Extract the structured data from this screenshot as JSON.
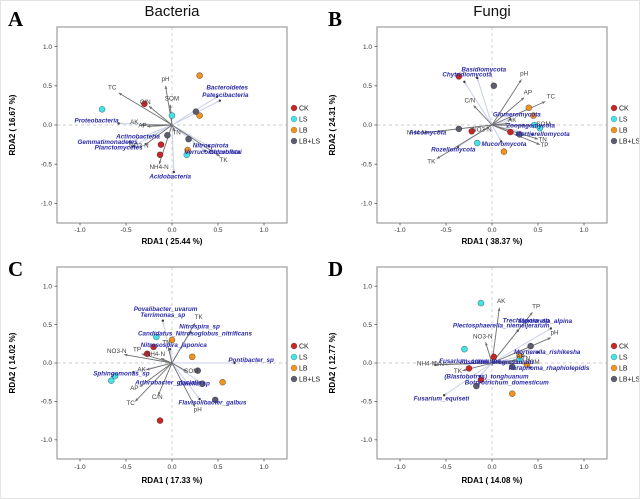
{
  "figure": {
    "column_titles": [
      "Bacteria",
      "Fungi"
    ],
    "legend": {
      "groups": [
        {
          "label": "CK",
          "color": "#c92626"
        },
        {
          "label": "LS",
          "color": "#45e2e6"
        },
        {
          "label": "LB",
          "color": "#f0921e"
        },
        {
          "label": "LB+LS",
          "color": "#5d5d70"
        }
      ]
    },
    "colors": {
      "taxa_label": "#2a2aa8",
      "env_label": "#3f3f3f",
      "env_arrow": "#6f6f6f",
      "taxa_arrow": "#c9d0e8",
      "frame": "#8a8a8a",
      "zero_line": "#cccccc"
    }
  },
  "chart_data": [
    {
      "type": "scatter",
      "id": "A",
      "letter": "A",
      "xlabel": "RDA1 ( 25.44 %)",
      "ylabel": "RDA2 ( 16.67 %)",
      "xticks": [
        -1.0,
        -0.5,
        0.0,
        0.5,
        1.0
      ],
      "yticks": [
        -1.0,
        -0.5,
        0.0,
        0.5,
        1.0
      ],
      "xlim": [
        -1.25,
        1.25
      ],
      "ylim": [
        -1.25,
        1.25
      ],
      "env_arrows": [
        {
          "label": "pH",
          "x": -0.07,
          "y": 0.5,
          "tx": -0.07,
          "ty": 0.56
        },
        {
          "label": "SOM",
          "x": -0.02,
          "y": 0.26,
          "tx": 0.0,
          "ty": 0.31
        },
        {
          "label": "TC",
          "x": -0.58,
          "y": 0.41,
          "tx": -0.65,
          "ty": 0.45
        },
        {
          "label": "C/N",
          "x": -0.25,
          "y": 0.24,
          "tx": -0.29,
          "ty": 0.27
        },
        {
          "label": "AK",
          "x": -0.34,
          "y": 0.0,
          "tx": -0.41,
          "ty": 0.01
        },
        {
          "label": "AP",
          "x": -0.27,
          "y": -0.02,
          "tx": -0.32,
          "ty": -0.03
        },
        {
          "label": "TN",
          "x": 0.03,
          "y": -0.08,
          "tx": 0.05,
          "ty": -0.12
        },
        {
          "label": "NO3-N",
          "x": -0.3,
          "y": -0.26,
          "tx": -0.36,
          "ty": -0.29
        },
        {
          "label": "NH4-N",
          "x": -0.14,
          "y": -0.5,
          "tx": -0.14,
          "ty": -0.56
        },
        {
          "label": "TK",
          "x": 0.52,
          "y": -0.4,
          "tx": 0.56,
          "ty": -0.47
        }
      ],
      "taxa": [
        {
          "label": "Bacteroidetes",
          "px": 0.49,
          "py": 0.36,
          "tx": 0.6,
          "ty": 0.45
        },
        {
          "label": "Patescibacteria",
          "px": 0.52,
          "py": 0.31,
          "tx": 0.58,
          "ty": 0.36
        },
        {
          "label": "Proteobacteria",
          "px": -0.58,
          "py": 0.02,
          "tx": -0.82,
          "ty": 0.03
        },
        {
          "label": "Actinobacteria",
          "px": -0.2,
          "py": -0.13,
          "tx": -0.37,
          "ty": -0.17
        },
        {
          "label": "Gemmatimonadetes",
          "px": -0.46,
          "py": -0.22,
          "tx": -0.7,
          "ty": -0.24
        },
        {
          "label": "Planctomycetes",
          "px": -0.42,
          "py": -0.27,
          "tx": -0.58,
          "ty": -0.31
        },
        {
          "label": "Nitrospirota",
          "px": 0.4,
          "py": -0.27,
          "tx": 0.42,
          "ty": -0.29
        },
        {
          "label": "Verrucomicrobiota",
          "px": 0.36,
          "py": -0.33,
          "tx": 0.44,
          "ty": -0.37
        },
        {
          "label": "Chloroflexi",
          "px": null,
          "py": null,
          "tx": 0.58,
          "ty": -0.37
        },
        {
          "label": "Acidobacteria",
          "px": 0.02,
          "py": -0.6,
          "tx": -0.02,
          "ty": -0.68
        }
      ],
      "samples": [
        {
          "group": "CK",
          "x": -0.3,
          "y": 0.27
        },
        {
          "group": "CK",
          "x": -0.12,
          "y": -0.25
        },
        {
          "group": "CK",
          "x": -0.13,
          "y": -0.38
        },
        {
          "group": "LS",
          "x": -0.76,
          "y": 0.2
        },
        {
          "group": "LS",
          "x": 0.0,
          "y": 0.12
        },
        {
          "group": "LS",
          "x": 0.16,
          "y": -0.38
        },
        {
          "group": "LB",
          "x": 0.3,
          "y": 0.63
        },
        {
          "group": "LB",
          "x": 0.3,
          "y": 0.12
        },
        {
          "group": "LB",
          "x": 0.17,
          "y": -0.32
        },
        {
          "group": "LB+LS",
          "x": 0.26,
          "y": 0.17
        },
        {
          "group": "LB+LS",
          "x": -0.05,
          "y": -0.13
        },
        {
          "group": "LB+LS",
          "x": 0.18,
          "y": -0.18
        }
      ]
    },
    {
      "type": "scatter",
      "id": "B",
      "letter": "B",
      "xlabel": "RDA1 ( 38.37 %)",
      "ylabel": "RDA2 ( 24.31 %)",
      "xticks": [
        -1.0,
        -0.5,
        0.0,
        0.5,
        1.0
      ],
      "yticks": [
        -1.0,
        -0.5,
        0.0,
        0.5,
        1.0
      ],
      "xlim": [
        -1.25,
        1.25
      ],
      "ylim": [
        -1.25,
        1.25
      ],
      "env_arrows": [
        {
          "label": "pH",
          "x": 0.32,
          "y": 0.58,
          "tx": 0.35,
          "ty": 0.63
        },
        {
          "label": "AP",
          "x": 0.35,
          "y": 0.35,
          "tx": 0.39,
          "ty": 0.39
        },
        {
          "label": "TC",
          "x": 0.58,
          "y": 0.3,
          "tx": 0.64,
          "ty": 0.34
        },
        {
          "label": "C/N",
          "x": -0.2,
          "y": 0.25,
          "tx": -0.24,
          "ty": 0.29
        },
        {
          "label": "AK",
          "x": 0.18,
          "y": 0.02,
          "tx": 0.22,
          "ty": 0.04
        },
        {
          "label": "SOM",
          "x": 0.5,
          "y": -0.01,
          "tx": 0.56,
          "ty": -0.01
        },
        {
          "label": "TN",
          "x": 0.5,
          "y": -0.18,
          "tx": 0.55,
          "ty": -0.21
        },
        {
          "label": "TP",
          "x": 0.52,
          "y": -0.25,
          "tx": 0.57,
          "ty": -0.28
        },
        {
          "label": "NO3-N",
          "x": -0.07,
          "y": -0.05,
          "tx": -0.11,
          "ty": -0.08
        },
        {
          "label": "NH4-N",
          "x": -0.74,
          "y": -0.1,
          "tx": -0.82,
          "ty": -0.12
        },
        {
          "label": "TK",
          "x": -0.6,
          "y": -0.43,
          "tx": -0.66,
          "ty": -0.49
        }
      ],
      "taxa": [
        {
          "label": "Basidiomycota",
          "px": -0.16,
          "py": 0.6,
          "tx": -0.09,
          "ty": 0.68
        },
        {
          "label": "Chytridiomycota",
          "px": -0.3,
          "py": 0.55,
          "tx": -0.27,
          "ty": 0.62
        },
        {
          "label": "Glomeromycota",
          "px": 0.2,
          "py": 0.07,
          "tx": 0.27,
          "ty": 0.11
        },
        {
          "label": "Zoopagomycota",
          "px": 0.34,
          "py": 0.0,
          "tx": 0.42,
          "ty": -0.03
        },
        {
          "label": "Mortierellomycota",
          "px": 0.44,
          "py": -0.12,
          "tx": 0.55,
          "ty": -0.14
        },
        {
          "label": "Mucoromycota",
          "px": 0.1,
          "py": -0.21,
          "tx": 0.13,
          "ty": -0.27
        },
        {
          "label": "Rozellomycota",
          "px": -0.37,
          "py": -0.28,
          "tx": -0.42,
          "ty": -0.34
        },
        {
          "label": "Ascomycota",
          "px": -0.58,
          "py": -0.08,
          "tx": -0.7,
          "ty": -0.12
        }
      ],
      "samples": [
        {
          "group": "CK",
          "x": -0.36,
          "y": 0.62
        },
        {
          "group": "CK",
          "x": -0.22,
          "y": -0.08
        },
        {
          "group": "CK",
          "x": 0.2,
          "y": -0.09
        },
        {
          "group": "LS",
          "x": 0.46,
          "y": 0.0
        },
        {
          "group": "LS",
          "x": 0.52,
          "y": -0.04
        },
        {
          "group": "LS",
          "x": -0.16,
          "y": -0.23
        },
        {
          "group": "LB",
          "x": 0.4,
          "y": 0.22
        },
        {
          "group": "LB",
          "x": 0.13,
          "y": -0.34
        },
        {
          "group": "LB",
          "x": 0.45,
          "y": 0.12
        },
        {
          "group": "LB+LS",
          "x": 0.02,
          "y": 0.5
        },
        {
          "group": "LB+LS",
          "x": -0.36,
          "y": -0.05
        },
        {
          "group": "LB+LS",
          "x": 0.3,
          "y": -0.12
        }
      ]
    },
    {
      "type": "scatter",
      "id": "C",
      "letter": "C",
      "xlabel": "RDA1 ( 17.33 %)",
      "ylabel": "RDA2 ( 14.02 %)",
      "xticks": [
        -1.0,
        -0.5,
        0.0,
        0.5,
        1.0
      ],
      "yticks": [
        -1.0,
        -0.5,
        0.0,
        0.5,
        1.0
      ],
      "xlim": [
        -1.25,
        1.25
      ],
      "ylim": [
        -1.25,
        1.25
      ],
      "env_arrows": [
        {
          "label": "TK",
          "x": 0.25,
          "y": 0.52,
          "tx": 0.29,
          "ty": 0.57
        },
        {
          "label": "TN",
          "x": -0.04,
          "y": 0.2,
          "tx": -0.06,
          "ty": 0.24
        },
        {
          "label": "TP",
          "x": -0.33,
          "y": 0.12,
          "tx": -0.38,
          "ty": 0.15
        },
        {
          "label": "NO3-N",
          "x": -0.52,
          "y": 0.11,
          "tx": -0.6,
          "ty": 0.13
        },
        {
          "label": "NH4-N",
          "x": -0.12,
          "y": 0.06,
          "tx": -0.18,
          "ty": 0.09
        },
        {
          "label": "AK",
          "x": -0.28,
          "y": -0.09,
          "tx": -0.33,
          "ty": -0.11
        },
        {
          "label": "AP",
          "x": -0.35,
          "y": -0.31,
          "tx": -0.41,
          "ty": -0.35
        },
        {
          "label": "C/N",
          "x": -0.15,
          "y": -0.42,
          "tx": -0.16,
          "ty": -0.47
        },
        {
          "label": "TC",
          "x": -0.4,
          "y": -0.5,
          "tx": -0.45,
          "ty": -0.55
        },
        {
          "label": "SOM",
          "x": 0.16,
          "y": -0.11,
          "tx": 0.21,
          "ty": -0.13
        },
        {
          "label": "pH",
          "x": 0.25,
          "y": -0.57,
          "tx": 0.28,
          "ty": -0.63
        }
      ],
      "taxa": [
        {
          "label": "Povalibacter_uvarum",
          "px": -0.1,
          "py": 0.55,
          "tx": -0.07,
          "ty": 0.68
        },
        {
          "label": "Terrimonas_sp",
          "px": null,
          "py": null,
          "tx": -0.1,
          "ty": 0.6
        },
        {
          "label": "Nitrospira_sp",
          "px": 0.2,
          "py": 0.4,
          "tx": 0.3,
          "ty": 0.45
        },
        {
          "label": "Candidatus_Nitrosoglobus_nitrificans",
          "px": null,
          "py": null,
          "tx": 0.25,
          "ty": 0.36
        },
        {
          "label": "Nitrosospira_japonica",
          "px": -0.02,
          "py": 0.18,
          "tx": 0.02,
          "ty": 0.21
        },
        {
          "label": "Pontibacter_sp",
          "px": 0.68,
          "py": 0.0,
          "tx": 0.86,
          "ty": 0.01
        },
        {
          "label": "Sphingomonas_sp",
          "px": -0.42,
          "py": -0.12,
          "tx": -0.55,
          "ty": -0.16
        },
        {
          "label": "Arthrobacter_glacialis",
          "px": null,
          "py": null,
          "tx": -0.04,
          "ty": -0.28
        },
        {
          "label": "Gaiella_sp",
          "px": 0.33,
          "py": -0.27,
          "tx": 0.24,
          "ty": -0.29
        },
        {
          "label": "Flavisolibacter_galbus",
          "px": 0.3,
          "py": -0.47,
          "tx": 0.44,
          "ty": -0.54
        }
      ],
      "samples": [
        {
          "group": "CK",
          "x": -0.2,
          "y": 0.21
        },
        {
          "group": "CK",
          "x": -0.27,
          "y": 0.12
        },
        {
          "group": "CK",
          "x": -0.13,
          "y": -0.75
        },
        {
          "group": "LS",
          "x": -0.17,
          "y": 0.34
        },
        {
          "group": "LS",
          "x": -0.62,
          "y": -0.17
        },
        {
          "group": "LS",
          "x": -0.66,
          "y": -0.23
        },
        {
          "group": "LB",
          "x": 0.0,
          "y": 0.3
        },
        {
          "group": "LB",
          "x": 0.22,
          "y": 0.08
        },
        {
          "group": "LB",
          "x": 0.55,
          "y": -0.25
        },
        {
          "group": "LB+LS",
          "x": 0.28,
          "y": -0.1
        },
        {
          "group": "LB+LS",
          "x": 0.47,
          "y": -0.48
        },
        {
          "group": "LB+LS",
          "x": 0.33,
          "y": -0.27
        }
      ]
    },
    {
      "type": "scatter",
      "id": "D",
      "letter": "D",
      "xlabel": "RDA1 ( 14.08 %)",
      "ylabel": "RDA2 ( 12.77 %)",
      "xticks": [
        -1.0,
        -0.5,
        0.0,
        0.5,
        1.0
      ],
      "yticks": [
        -1.0,
        -0.5,
        0.0,
        0.5,
        1.0
      ],
      "xlim": [
        -1.25,
        1.25
      ],
      "ylim": [
        -1.25,
        1.25
      ],
      "env_arrows": [
        {
          "label": "AK",
          "x": 0.08,
          "y": 0.72,
          "tx": 0.1,
          "ty": 0.78
        },
        {
          "label": "TP",
          "x": 0.44,
          "y": 0.66,
          "tx": 0.48,
          "ty": 0.71
        },
        {
          "label": "pH",
          "x": 0.64,
          "y": 0.33,
          "tx": 0.68,
          "ty": 0.37
        },
        {
          "label": "NO3-N",
          "x": -0.07,
          "y": 0.27,
          "tx": -0.1,
          "ty": 0.32
        },
        {
          "label": "AP",
          "x": 0.27,
          "y": 0.04,
          "tx": 0.31,
          "ty": 0.06
        },
        {
          "label": "TN",
          "x": 0.33,
          "y": 0.02,
          "tx": 0.37,
          "ty": 0.03
        },
        {
          "label": "SOM",
          "x": 0.38,
          "y": -0.01,
          "tx": 0.44,
          "ty": -0.01
        },
        {
          "label": "NH4-N",
          "x": -0.62,
          "y": -0.02,
          "tx": -0.71,
          "ty": -0.03
        },
        {
          "label": "C/N",
          "x": -0.52,
          "y": -0.02,
          "tx": -0.58,
          "ty": -0.04
        },
        {
          "label": "TK",
          "x": -0.32,
          "y": -0.1,
          "tx": -0.37,
          "ty": -0.13
        }
      ],
      "taxa": [
        {
          "label": "Plectosphaerella_niemeijerarum",
          "px": 0.28,
          "py": 0.42,
          "tx": 0.1,
          "ty": 0.46
        },
        {
          "label": "Trechispora_sp",
          "px": null,
          "py": null,
          "tx": 0.37,
          "ty": 0.53
        },
        {
          "label": "Mortierella_alpina",
          "px": 0.64,
          "py": 0.45,
          "tx": 0.58,
          "ty": 0.52
        },
        {
          "label": "Mortierella_rishikesha",
          "px": 0.5,
          "py": 0.14,
          "tx": 0.6,
          "ty": 0.12
        },
        {
          "label": "Paraphoma_rhaphiolepidis",
          "px": 0.42,
          "py": -0.06,
          "tx": 0.62,
          "ty": -0.09
        },
        {
          "label": "Fusarium_commune",
          "px": null,
          "py": null,
          "tx": -0.24,
          "ty": 0.0
        },
        {
          "label": "Fusarium_progressivum",
          "px": null,
          "py": null,
          "tx": 0.05,
          "ty": -0.01
        },
        {
          "label": "(Blastobotrys)_tonghuanum",
          "px": -0.13,
          "py": -0.17,
          "tx": -0.06,
          "ty": -0.2
        },
        {
          "label": "Botryotrichum_domesticum",
          "px": null,
          "py": null,
          "tx": 0.16,
          "ty": -0.28
        },
        {
          "label": "Fusarium_equiseti",
          "px": -0.52,
          "py": -0.42,
          "tx": -0.55,
          "ty": -0.49
        }
      ],
      "samples": [
        {
          "group": "LS",
          "x": -0.12,
          "y": 0.78
        },
        {
          "group": "LS",
          "x": -0.3,
          "y": 0.18
        },
        {
          "group": "LS",
          "x": 0.3,
          "y": 0.05
        },
        {
          "group": "CK",
          "x": 0.02,
          "y": 0.08
        },
        {
          "group": "CK",
          "x": -0.25,
          "y": -0.07
        },
        {
          "group": "CK",
          "x": -0.12,
          "y": -0.22
        },
        {
          "group": "LB",
          "x": 0.22,
          "y": -0.4
        },
        {
          "group": "LB",
          "x": 0.38,
          "y": -0.02
        },
        {
          "group": "LB",
          "x": 0.3,
          "y": 0.1
        },
        {
          "group": "LB+LS",
          "x": 0.22,
          "y": -0.05
        },
        {
          "group": "LB+LS",
          "x": -0.17,
          "y": -0.3
        },
        {
          "group": "LB+LS",
          "x": 0.42,
          "y": 0.22
        }
      ]
    }
  ]
}
